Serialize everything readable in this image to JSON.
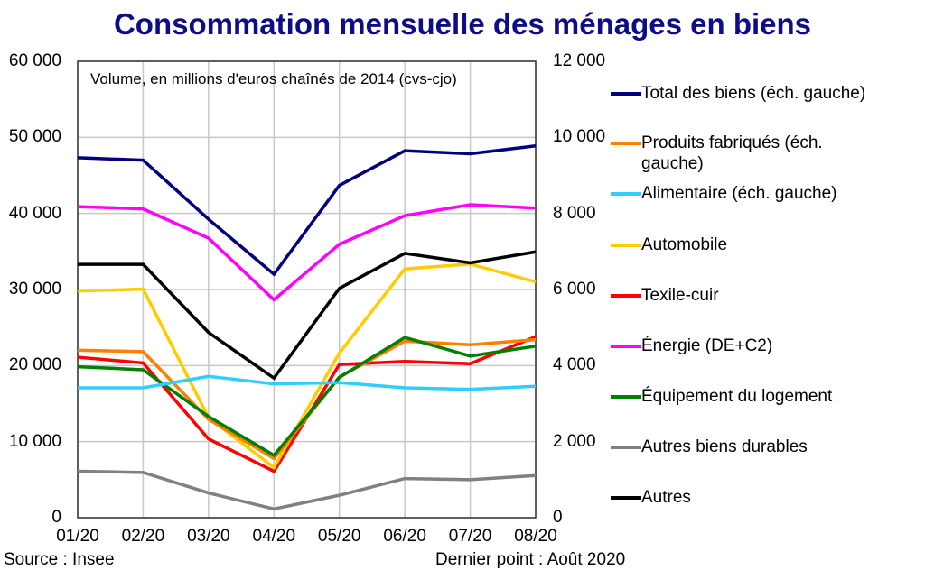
{
  "chart_data": {
    "type": "line",
    "title": "Consommation mensuelle des ménages en biens",
    "subtitle": "Volume, en millions d'euros chaînés de 2014 (cvs-cjo)",
    "categories": [
      "01/20",
      "02/20",
      "03/20",
      "04/20",
      "05/20",
      "06/20",
      "07/20",
      "08/20"
    ],
    "y_left": {
      "range": [
        0,
        60000
      ],
      "ticks": [
        "0",
        "10 000",
        "20 000",
        "30 000",
        "40 000",
        "50 000",
        "60 000"
      ]
    },
    "y_right": {
      "range": [
        0,
        12000
      ],
      "ticks": [
        "0",
        "2 000",
        "4 000",
        "6 000",
        "8 000",
        "10 000",
        "12 000"
      ]
    },
    "grid": true,
    "legend_position": "right",
    "series": [
      {
        "name": "Total des biens (éch. gauche)",
        "axis": "left",
        "color": "#000080",
        "values": [
          47330,
          47000,
          39240,
          32000,
          43690,
          48240,
          47850,
          48880
        ]
      },
      {
        "name": "Produits fabriqués (éch. gauche)",
        "axis": "left",
        "color": "#ff7f00",
        "values": [
          22030,
          21830,
          12930,
          7790,
          18500,
          23210,
          22740,
          23400
        ]
      },
      {
        "name": "Alimentaire (éch. gauche)",
        "axis": "left",
        "color": "#33ccff",
        "values": [
          17080,
          17080,
          18590,
          17590,
          17760,
          17080,
          16880,
          17280
        ]
      },
      {
        "name": "Automobile",
        "axis": "right",
        "color": "#ffcc00",
        "values": [
          5960,
          6010,
          2630,
          1320,
          4330,
          6540,
          6670,
          6200
        ]
      },
      {
        "name": "Texile-cuir",
        "axis": "right",
        "color": "#ff0000",
        "values": [
          4220,
          4070,
          2070,
          1220,
          4030,
          4110,
          4050,
          4760
        ]
      },
      {
        "name": "Énergie (DE+C2)",
        "axis": "right",
        "color": "#ff00ff",
        "values": [
          8180,
          8120,
          7350,
          5730,
          7190,
          7940,
          8230,
          8140
        ]
      },
      {
        "name": "Équipement du logement",
        "axis": "right",
        "color": "#008000",
        "values": [
          3970,
          3890,
          2660,
          1640,
          3690,
          4740,
          4250,
          4510
        ]
      },
      {
        "name": "Autres biens durables",
        "axis": "right",
        "color": "#808080",
        "values": [
          1220,
          1190,
          650,
          230,
          590,
          1030,
          1000,
          1110
        ]
      },
      {
        "name": "Autres",
        "axis": "right",
        "color": "#000000",
        "values": [
          6660,
          6660,
          4870,
          3670,
          6030,
          6950,
          6700,
          6990
        ]
      }
    ]
  },
  "footer": {
    "source": "Source : Insee",
    "last_point": "Dernier point : Août 2020"
  }
}
